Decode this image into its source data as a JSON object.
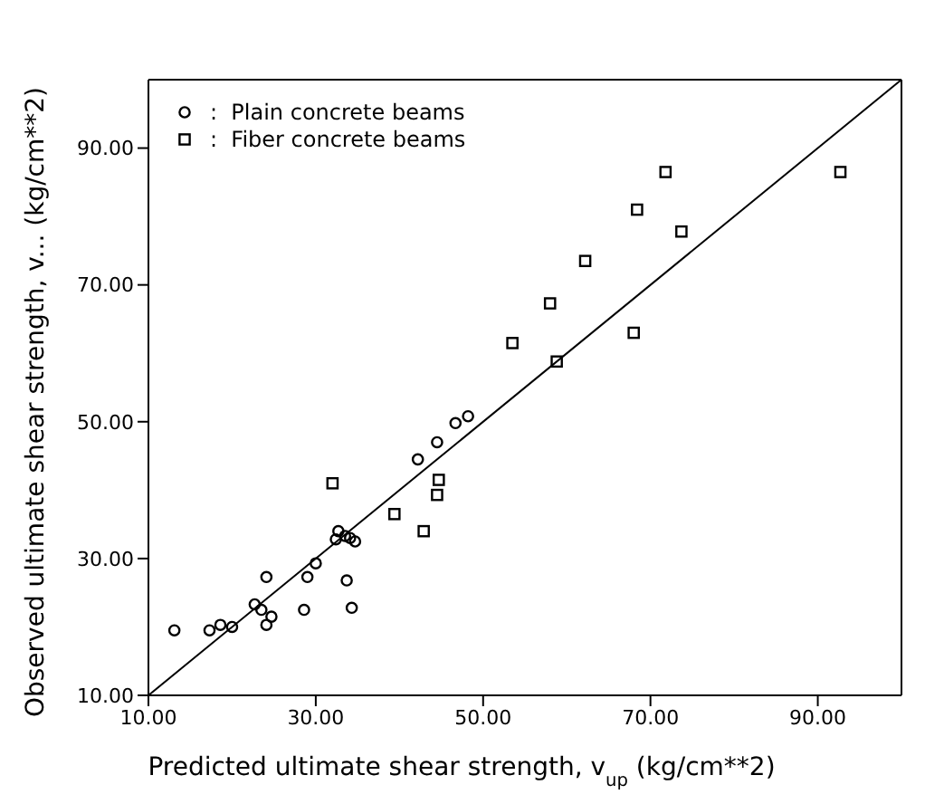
{
  "chart_data": {
    "type": "scatter",
    "xlabel": "Predicted ultimate shear strength, v$_{up}$ (kg/cm**2)",
    "ylabel": "Observed ultimate shear strength, v... (kg/cm**2)",
    "xlim": [
      10,
      100
    ],
    "ylim": [
      10,
      100
    ],
    "xticks": [
      {
        "value": 10,
        "label": "10.00"
      },
      {
        "value": 30,
        "label": "30.00"
      },
      {
        "value": 50,
        "label": "50.00"
      },
      {
        "value": 70,
        "label": "70.00"
      },
      {
        "value": 90,
        "label": "90.00"
      }
    ],
    "yticks": [
      {
        "value": 10,
        "label": "10.00"
      },
      {
        "value": 30,
        "label": "30.00"
      },
      {
        "value": 50,
        "label": "50.00"
      },
      {
        "value": 70,
        "label": "70.00"
      },
      {
        "value": 90,
        "label": "90.00"
      }
    ],
    "legend": "top left",
    "grid": false,
    "series": [
      {
        "name": ":  Plain concrete beams",
        "color": "#000000",
        "marker": "circle",
        "x": [
          13.1,
          17.3,
          18.6,
          20.0,
          22.7,
          23.5,
          24.1,
          24.7,
          24.1,
          28.6,
          29.0,
          30.0,
          33.7,
          34.3,
          32.4,
          32.7,
          33.5,
          34.1,
          34.7,
          42.2,
          44.5,
          46.7,
          48.2
        ],
        "values": [
          19.5,
          19.5,
          20.3,
          20.0,
          23.3,
          22.5,
          20.3,
          21.5,
          27.3,
          22.5,
          27.3,
          29.3,
          26.8,
          22.8,
          32.8,
          34.0,
          33.3,
          33.0,
          32.5,
          44.5,
          47.0,
          49.8,
          50.8
        ]
      },
      {
        "name": ":  Fiber concrete beams",
        "color": "#000000",
        "marker": "square",
        "x": [
          32.0,
          39.4,
          42.9,
          44.5,
          44.7,
          53.5,
          58.0,
          58.8,
          62.2,
          68.0,
          68.4,
          71.8,
          92.7,
          73.7
        ],
        "values": [
          41.0,
          36.5,
          34.0,
          39.3,
          41.5,
          61.5,
          67.3,
          58.8,
          73.5,
          63.0,
          81.0,
          86.5,
          86.5,
          77.8
        ]
      },
      {
        "type": "line",
        "color": "#000000",
        "marker": "none",
        "line_style": "solid",
        "x": [
          10,
          100
        ],
        "values": [
          10,
          100
        ]
      }
    ]
  }
}
